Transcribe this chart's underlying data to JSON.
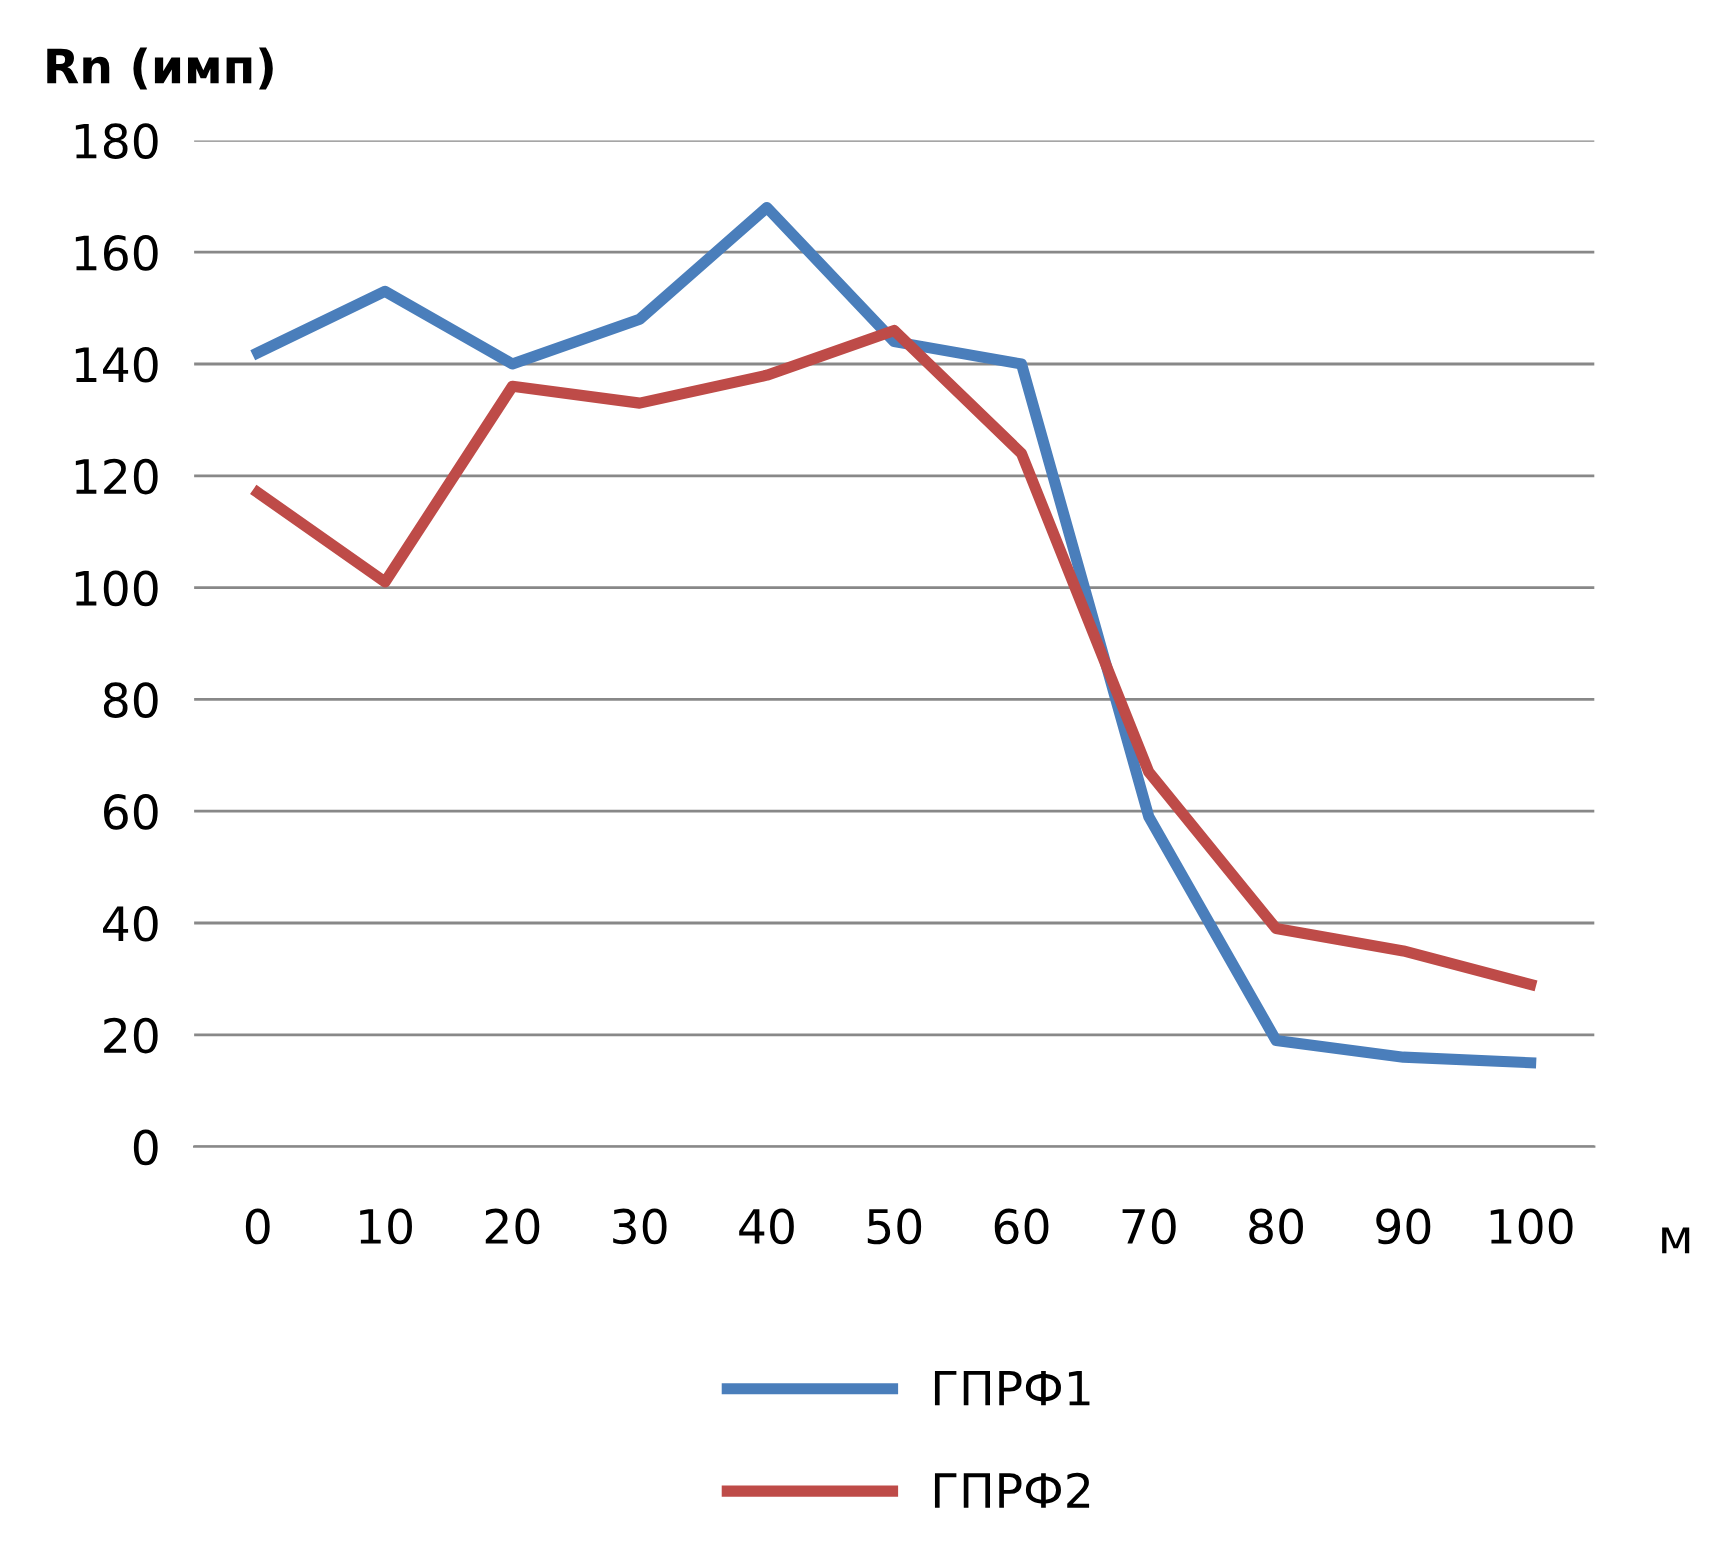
{
  "chart_data": {
    "type": "line",
    "ylabel": "Rn (имп)",
    "xlabel": "м",
    "categories": [
      "0",
      "10",
      "20",
      "30",
      "40",
      "50",
      "60",
      "70",
      "80",
      "90",
      "100"
    ],
    "series": [
      {
        "name": "ГПРФ1",
        "color": "#4a7ebb",
        "values": [
          142,
          153,
          140,
          148,
          168,
          144,
          140,
          59,
          19,
          16,
          15
        ]
      },
      {
        "name": "ГПРФ2",
        "color": "#be4b48",
        "values": [
          117,
          101,
          136,
          133,
          138,
          146,
          124,
          67,
          39,
          35,
          29
        ]
      }
    ],
    "ylim": [
      0,
      180
    ],
    "yticks": [
      0,
      20,
      40,
      60,
      80,
      100,
      120,
      140,
      160,
      180
    ],
    "grid": "y",
    "legend": "bottom",
    "marker": "none",
    "line_style": "solid"
  }
}
